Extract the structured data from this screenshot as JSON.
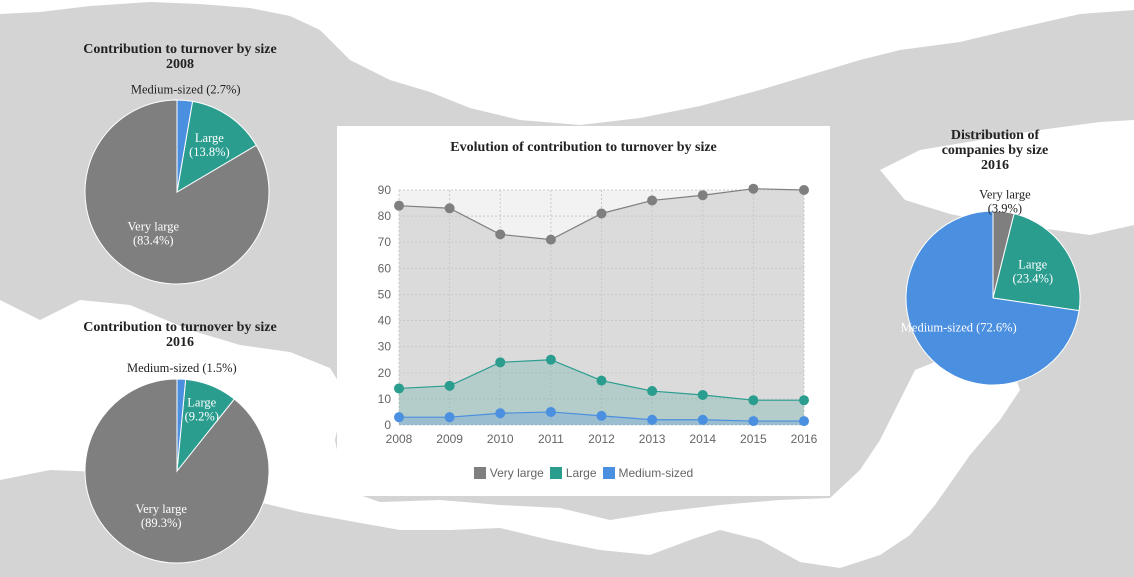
{
  "colors": {
    "very_large": "#7f7f7f",
    "large": "#2a9d8f",
    "medium": "#4a8fe0",
    "map_land": "#d4d4d4",
    "map_sea": "#ffffff"
  },
  "chart_data": [
    {
      "type": "pie",
      "title": "Contribution to turnover by size",
      "subtitle": "2008",
      "slices": [
        {
          "label": "Very large",
          "value": 83.4,
          "text": "Very large (83.4%)"
        },
        {
          "label": "Large",
          "value": 13.8,
          "text": "Large (13.8%)"
        },
        {
          "label": "Medium-sized",
          "value": 2.7,
          "text": "Medium-sized (2.7%)"
        }
      ]
    },
    {
      "type": "pie",
      "title": "Contribution to turnover by size",
      "subtitle": "2016",
      "slices": [
        {
          "label": "Very large",
          "value": 89.3,
          "text": "Very large (89.3%)"
        },
        {
          "label": "Large",
          "value": 9.2,
          "text": "Large (9.2%)"
        },
        {
          "label": "Medium-sized",
          "value": 1.5,
          "text": "Medium-sized (1.5%)"
        }
      ]
    },
    {
      "type": "area",
      "title": "Evolution of contribution to turnover by size",
      "x": [
        "2008",
        "2009",
        "2010",
        "2011",
        "2012",
        "2013",
        "2014",
        "2015",
        "2016"
      ],
      "ylim": [
        0,
        90
      ],
      "yticks": [
        0,
        10,
        20,
        30,
        40,
        50,
        60,
        70,
        80,
        90
      ],
      "grid": true,
      "legend_position": "bottom",
      "series": [
        {
          "name": "Very large",
          "values": [
            84,
            83,
            73,
            71,
            81,
            86,
            88,
            90.5,
            90
          ]
        },
        {
          "name": "Large",
          "values": [
            14,
            15,
            24,
            25,
            17,
            13,
            11.5,
            9.5,
            9.5
          ]
        },
        {
          "name": "Medium-sized",
          "values": [
            3,
            3,
            4.5,
            5,
            3.5,
            2,
            2,
            1.5,
            1.5
          ]
        }
      ]
    },
    {
      "type": "pie",
      "title_lines": [
        "Distribution of",
        "companies by size",
        "2016"
      ],
      "slices": [
        {
          "label": "Very large",
          "value": 3.9,
          "text": "Very large (3.9%)"
        },
        {
          "label": "Large",
          "value": 23.4,
          "text": "Large (23.4%)"
        },
        {
          "label": "Medium-sized",
          "value": 72.6,
          "text": "Medium-sized (72.6%)"
        }
      ]
    }
  ]
}
